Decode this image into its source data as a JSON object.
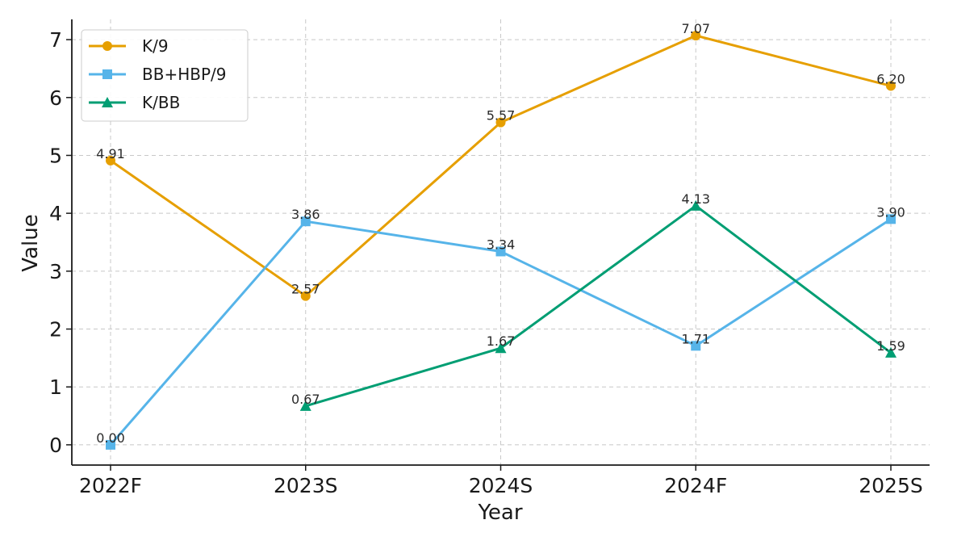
{
  "chart_data": {
    "type": "line",
    "title": "",
    "xlabel": "Year",
    "ylabel": "Value",
    "categories": [
      "2022F",
      "2023S",
      "2024S",
      "2024F",
      "2025S"
    ],
    "ylim": [
      -0.35,
      7.35
    ],
    "yticks": [
      0,
      1,
      2,
      3,
      4,
      5,
      6,
      7
    ],
    "grid": true,
    "legend_position": "top-left",
    "series": [
      {
        "name": "K/9",
        "values": [
          4.91,
          2.57,
          5.57,
          7.07,
          6.2
        ],
        "labels": [
          "4.91",
          "2.57",
          "5.57",
          "7.07",
          "6.20"
        ],
        "color": "#E69F00",
        "marker": "circle"
      },
      {
        "name": "BB+HBP/9",
        "values": [
          0.0,
          3.86,
          3.34,
          1.71,
          3.9
        ],
        "labels": [
          "0.00",
          "3.86",
          "3.34",
          "1.71",
          "3.90"
        ],
        "color": "#56B4E9",
        "marker": "square"
      },
      {
        "name": "K/BB",
        "values": [
          null,
          0.67,
          1.67,
          4.13,
          1.59
        ],
        "labels": [
          null,
          "0.67",
          "1.67",
          "4.13",
          "1.59"
        ],
        "color": "#009E73",
        "marker": "triangle"
      }
    ]
  }
}
